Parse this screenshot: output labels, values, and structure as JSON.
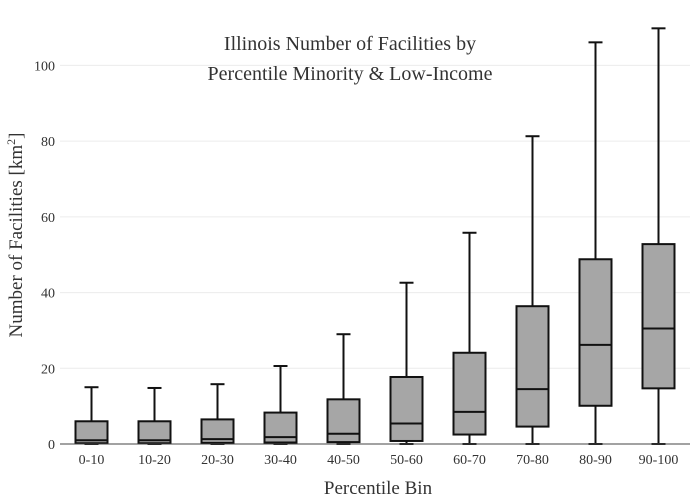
{
  "chart_data": {
    "type": "box",
    "title": [
      "Illinois Number of Facilities by",
      "Percentile Minority & Low-Income"
    ],
    "xlabel": "Percentile Bin",
    "ylabel_main": "Number of Facilities  [km",
    "ylabel_sup": "2",
    "ylabel_close": "]",
    "ylim": [
      0,
      112
    ],
    "yticks": [
      0,
      20,
      40,
      60,
      80,
      100
    ],
    "grid": true,
    "categories": [
      "0-10",
      "10-20",
      "20-30",
      "30-40",
      "40-50",
      "50-60",
      "60-70",
      "70-80",
      "80-90",
      "90-100"
    ],
    "box_color": "#a6a6a6",
    "boxes": [
      {
        "min": 0,
        "q1": 0.2,
        "median": 1,
        "q3": 6,
        "max": 15
      },
      {
        "min": 0,
        "q1": 0.2,
        "median": 1,
        "q3": 6,
        "max": 14.8
      },
      {
        "min": 0,
        "q1": 0.3,
        "median": 1.3,
        "q3": 6.5,
        "max": 15.8
      },
      {
        "min": 0,
        "q1": 0.4,
        "median": 1.8,
        "q3": 8.3,
        "max": 20.6
      },
      {
        "min": 0,
        "q1": 0.5,
        "median": 2.7,
        "q3": 11.8,
        "max": 29
      },
      {
        "min": 0,
        "q1": 0.8,
        "median": 5.4,
        "q3": 17.7,
        "max": 42.6
      },
      {
        "min": 0,
        "q1": 2.5,
        "median": 8.5,
        "q3": 24.1,
        "max": 55.8
      },
      {
        "min": 0,
        "q1": 4.6,
        "median": 14.5,
        "q3": 36.4,
        "max": 81.3
      },
      {
        "min": 0,
        "q1": 10.1,
        "median": 26.2,
        "q3": 48.8,
        "max": 106.1
      },
      {
        "min": 0,
        "q1": 14.7,
        "median": 30.5,
        "q3": 52.8,
        "max": 109.8
      }
    ]
  }
}
